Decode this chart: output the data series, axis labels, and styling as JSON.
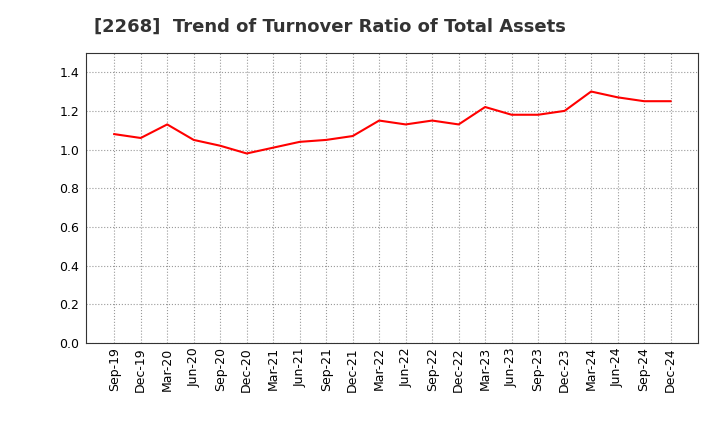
{
  "title": "[2268]  Trend of Turnover Ratio of Total Assets",
  "line_color": "#ff0000",
  "line_width": 1.5,
  "background_color": "#ffffff",
  "grid_color": "#999999",
  "ylim": [
    0.0,
    1.5
  ],
  "yticks": [
    0.0,
    0.2,
    0.4,
    0.6,
    0.8,
    1.0,
    1.2,
    1.4
  ],
  "labels": [
    "Sep-19",
    "Dec-19",
    "Mar-20",
    "Jun-20",
    "Sep-20",
    "Dec-20",
    "Mar-21",
    "Jun-21",
    "Sep-21",
    "Dec-21",
    "Mar-22",
    "Jun-22",
    "Sep-22",
    "Dec-22",
    "Mar-23",
    "Jun-23",
    "Sep-23",
    "Dec-23",
    "Mar-24",
    "Jun-24",
    "Sep-24",
    "Dec-24"
  ],
  "values": [
    1.08,
    1.06,
    1.13,
    1.05,
    1.02,
    0.98,
    1.01,
    1.04,
    1.05,
    1.07,
    1.15,
    1.13,
    1.15,
    1.13,
    1.22,
    1.18,
    1.18,
    1.2,
    1.3,
    1.27,
    1.25,
    1.25
  ],
  "title_fontsize": 13,
  "tick_fontsize": 9
}
